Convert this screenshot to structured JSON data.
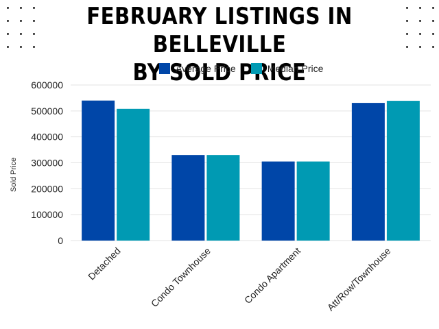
{
  "chart_data": {
    "type": "bar",
    "title_lines": [
      "FEBRUARY LISTINGS IN BELLEVILLE",
      "BY SOLD PRICE"
    ],
    "ylabel": "Sold Price",
    "xlabel": "",
    "categories": [
      "Detached",
      "Condo Townhouse",
      "Condo Apartment",
      "Att/Row/Townhouse"
    ],
    "series": [
      {
        "name": "Average Price",
        "color": "#0046A8",
        "values": [
          540000,
          330000,
          305000,
          531000
        ]
      },
      {
        "name": "Median Price",
        "color": "#009AB3",
        "values": [
          508000,
          330000,
          305000,
          539000
        ]
      }
    ],
    "ylim": [
      0,
      600000
    ],
    "yticks": [
      "0",
      "100000",
      "200000",
      "300000",
      "400000",
      "500000",
      "600000"
    ],
    "grid": true,
    "legend": "top"
  }
}
